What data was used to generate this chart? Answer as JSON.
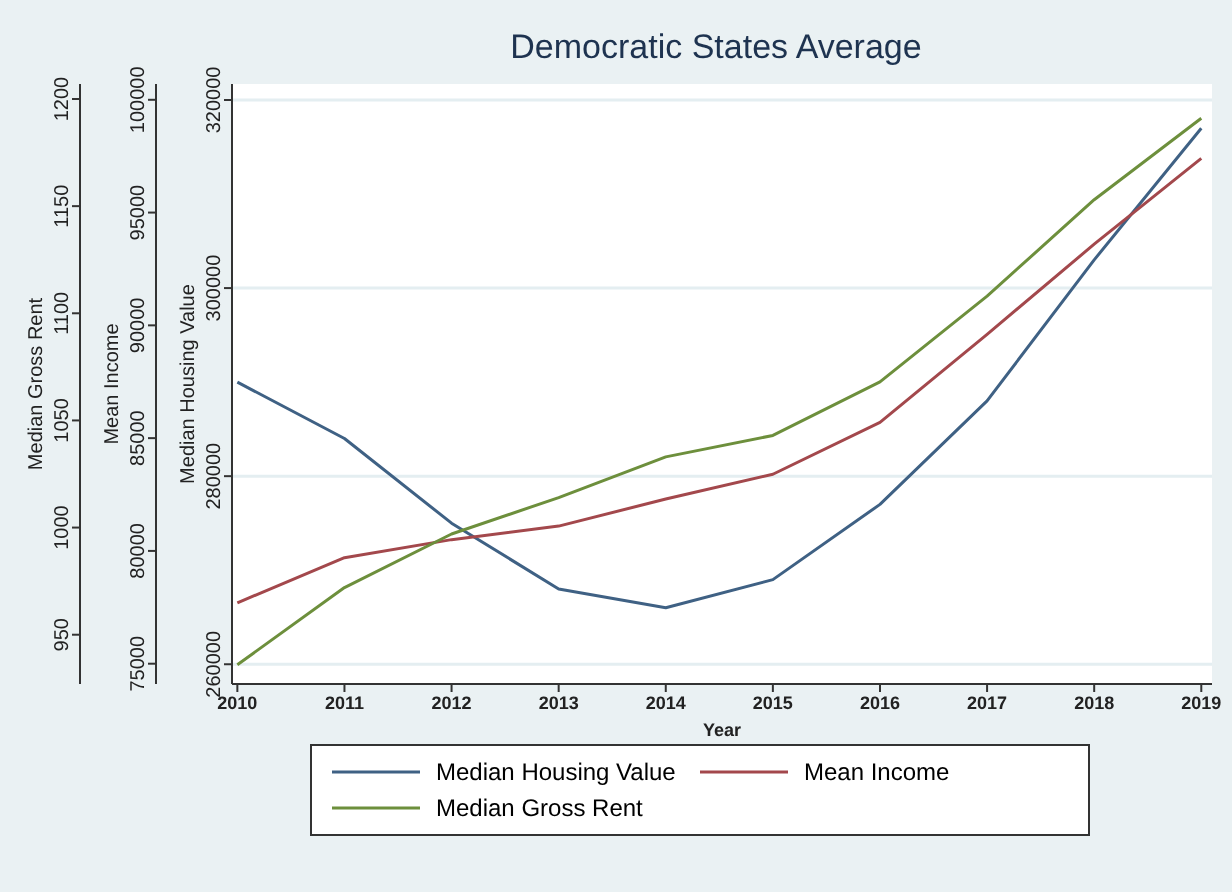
{
  "chart_data": {
    "type": "line",
    "title": "Democratic States Average",
    "xlabel": "Year",
    "ylabel": "Median Housing Value",
    "y2label": "Mean Income",
    "y3label": "Median Gross Rent",
    "x": [
      2010,
      2011,
      2012,
      2013,
      2014,
      2015,
      2016,
      2017,
      2018,
      2019
    ],
    "xlim": [
      2009.95,
      2019.1
    ],
    "xticks": [
      2010,
      2011,
      2012,
      2013,
      2014,
      2015,
      2016,
      2017,
      2018,
      2019
    ],
    "ylim": [
      257900,
      321700
    ],
    "yticks": [
      260000,
      280000,
      300000,
      320000
    ],
    "y2lim": [
      74100,
      100700
    ],
    "y2ticks": [
      75000,
      80000,
      85000,
      90000,
      95000,
      100000
    ],
    "y3lim": [
      927,
      1207
    ],
    "y3ticks": [
      950,
      1000,
      1050,
      1100,
      1150,
      1200
    ],
    "series": [
      {
        "name": "Median Housing Value",
        "color": "#3f6184",
        "axis": "y",
        "values": [
          290000,
          284000,
          275000,
          268000,
          266000,
          269000,
          277000,
          288000,
          303000,
          317000
        ]
      },
      {
        "name": "Mean Income",
        "color": "#a3484c",
        "axis": "y2",
        "values": [
          77700,
          79700,
          80500,
          81100,
          82300,
          83400,
          85700,
          89600,
          93600,
          97400
        ]
      },
      {
        "name": "Median Gross Rent",
        "color": "#6d8f3c",
        "axis": "y3",
        "values": [
          936,
          972,
          997,
          1014,
          1033,
          1043,
          1068,
          1108,
          1153,
          1191
        ]
      }
    ],
    "grid": "y",
    "legend": "bottom",
    "marker": "none",
    "line_style": "solid"
  }
}
